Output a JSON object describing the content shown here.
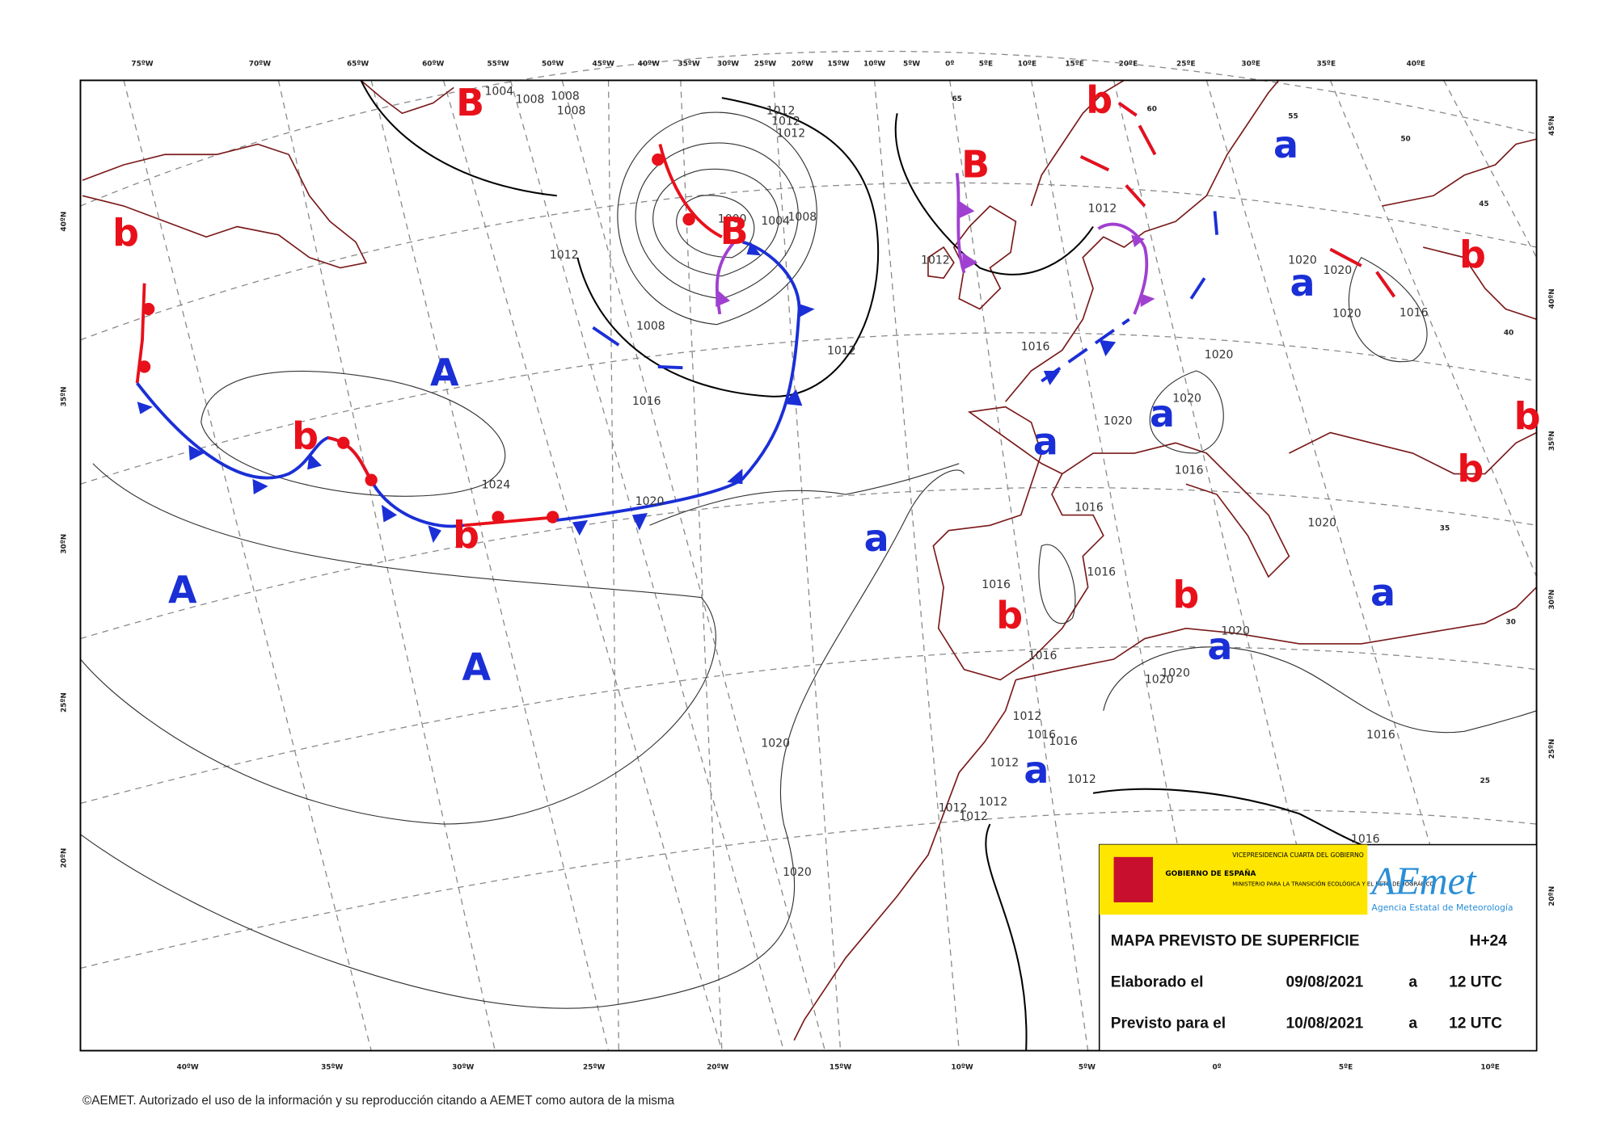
{
  "longitude_labels_top": [
    "75ºW",
    "70ºW",
    "65ºW",
    "60ºW",
    "55ºW",
    "50ºW",
    "45ºW",
    "40ºW",
    "35ºW",
    "30ºW",
    "25ºW",
    "20ºW",
    "15ºW",
    "10ºW",
    "5ºW",
    "0º",
    "5ºE",
    "10ºE",
    "15ºE",
    "20ºE",
    "25ºE",
    "30ºE",
    "35ºE",
    "40ºE"
  ],
  "longitude_labels_bottom": [
    "40ºW",
    "35ºW",
    "30ºW",
    "25ºW",
    "20ºW",
    "15ºW",
    "10ºW",
    "5ºW",
    "0º",
    "5ºE",
    "10ºE"
  ],
  "latitude_labels_left": [
    "40ºN",
    "35ºN",
    "30ºN",
    "25ºN",
    "20ºN"
  ],
  "latitude_labels_right": [
    "45ºN",
    "40ºN",
    "35ºN",
    "30ºN",
    "25ºN",
    "20ºN"
  ],
  "pressure_centers": [
    {
      "label": "B",
      "color": "#e8101a"
    },
    {
      "label": "b",
      "color": "#e8101a"
    },
    {
      "label": "b",
      "color": "#e8101a"
    },
    {
      "label": "B",
      "color": "#e8101a"
    },
    {
      "label": "a",
      "color": "#1a2fd6"
    },
    {
      "label": "a",
      "color": "#1a2fd6"
    },
    {
      "label": "b",
      "color": "#e8101a"
    },
    {
      "label": "A",
      "color": "#1a2fd6"
    },
    {
      "label": "b",
      "color": "#e8101a"
    },
    {
      "label": "a",
      "color": "#1a2fd6"
    },
    {
      "label": "a",
      "color": "#1a2fd6"
    },
    {
      "label": "b",
      "color": "#e8101a"
    },
    {
      "label": "b",
      "color": "#e8101a"
    },
    {
      "label": "b",
      "color": "#e8101a"
    },
    {
      "label": "a",
      "color": "#1a2fd6"
    },
    {
      "label": "A",
      "color": "#1a2fd6"
    },
    {
      "label": "b",
      "color": "#e8101a"
    },
    {
      "label": "a",
      "color": "#1a2fd6"
    },
    {
      "label": "b",
      "color": "#e8101a"
    },
    {
      "label": "A",
      "color": "#1a2fd6"
    },
    {
      "label": "a",
      "color": "#1a2fd6"
    },
    {
      "label": "a",
      "color": "#1a2fd6"
    },
    {
      "label": "B",
      "color": "#e8101a"
    }
  ],
  "isobar_labels": [
    "1004",
    "1008",
    "1008",
    "1008",
    "1012",
    "1012",
    "1012",
    "1012",
    "1008",
    "1016",
    "1012",
    "1024",
    "1020",
    "1012",
    "1016",
    "1012",
    "1020",
    "1020",
    "1020",
    "1016",
    "1020",
    "1020",
    "1020",
    "1016",
    "1016",
    "1020",
    "1016",
    "1016",
    "1016",
    "1020",
    "1020",
    "1020",
    "1012",
    "1016",
    "1016",
    "1016",
    "1012",
    "1012",
    "1012",
    "1012",
    "1012",
    "1020",
    "1020",
    "1016",
    "1000",
    "1004",
    "1008"
  ],
  "grid_numbers": [
    "65",
    "60",
    "55",
    "50",
    "45",
    "40",
    "35",
    "30",
    "25"
  ],
  "info_box": {
    "government": "GOBIERNO DE ESPAÑA",
    "vice_presidency": "VICEPRESIDENCIA CUARTA DEL GOBIERNO",
    "ministry": "MINISTERIO PARA LA TRANSICIÓN ECOLÓGICA Y EL RETO DEMOGRÁFICO",
    "logo": "AEmet",
    "agency": "Agencia Estatal de Meteorología",
    "title": "MAPA PREVISTO DE SUPERFICIE",
    "forecast_step": "H+24",
    "made_label": "Elaborado el",
    "made_date": "09/08/2021",
    "made_at": "a",
    "made_time": "12 UTC",
    "valid_label": "Previsto para el",
    "valid_date": "10/08/2021",
    "valid_at": "a",
    "valid_time": "12 UTC"
  },
  "footer": "©AEMET. Autorizado el uso de la información y su reproducción citando a AEMET como autora de la misma"
}
